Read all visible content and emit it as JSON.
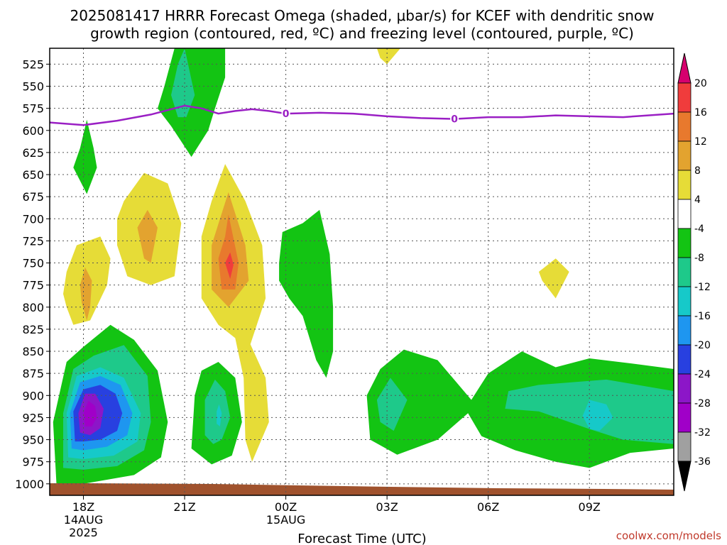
{
  "chart_data": {
    "type": "heatmap",
    "title_line1": "2025081417 HRRR Forecast Omega (shaded, μbar/s) for KCEF with dendritic snow",
    "title_line2": "growth region (contoured, red, ºC) and freezing level (contoured, purple, ºC)",
    "xlabel": "Forecast Time (UTC)",
    "credit": "coolwx.com/models",
    "x_ticks": [
      {
        "hour": 0,
        "label": "18Z",
        "sub1": "14AUG",
        "sub2": "2025"
      },
      {
        "hour": 3,
        "label": "21Z",
        "sub1": "",
        "sub2": ""
      },
      {
        "hour": 6,
        "label": "00Z",
        "sub1": "15AUG",
        "sub2": ""
      },
      {
        "hour": 9,
        "label": "03Z",
        "sub1": "",
        "sub2": ""
      },
      {
        "hour": 12,
        "label": "06Z",
        "sub1": "",
        "sub2": ""
      },
      {
        "hour": 15,
        "label": "09Z",
        "sub1": "",
        "sub2": ""
      }
    ],
    "xlim": [
      -1,
      17.5
    ],
    "ylim": [
      507,
      1013
    ],
    "y_ticks": [
      525,
      550,
      575,
      600,
      625,
      650,
      675,
      700,
      725,
      750,
      775,
      800,
      825,
      850,
      875,
      900,
      925,
      950,
      975,
      1000
    ],
    "colorbar": {
      "labels": [
        "20",
        "16",
        "12",
        "8",
        "4",
        "-4",
        "-8",
        "-12",
        "-16",
        "-20",
        "-24",
        "-28",
        "-32",
        "-36"
      ],
      "colors": [
        "#d6006e",
        "#f03c3c",
        "#e8792d",
        "#e3a32f",
        "#e6dc37",
        "#ffffff",
        "#13c413",
        "#1ec98a",
        "#16c9c9",
        "#1e96f0",
        "#2840e0",
        "#8c16c8",
        "#a000c8",
        "#a0a0a0",
        "#000000"
      ]
    },
    "freezing_level": {
      "label": "0",
      "label_hours": [
        6,
        11
      ],
      "points": [
        [
          -1,
          591
        ],
        [
          0,
          594
        ],
        [
          1,
          589
        ],
        [
          2,
          582
        ],
        [
          2.5,
          577
        ],
        [
          3,
          572
        ],
        [
          3.5,
          575
        ],
        [
          4,
          581
        ],
        [
          4.5,
          578
        ],
        [
          5,
          576
        ],
        [
          5.5,
          578
        ],
        [
          6,
          581
        ],
        [
          7,
          580
        ],
        [
          8,
          581
        ],
        [
          9,
          584
        ],
        [
          10,
          586
        ],
        [
          11,
          587
        ],
        [
          12,
          585
        ],
        [
          13,
          585
        ],
        [
          14,
          583
        ],
        [
          15,
          584
        ],
        [
          16,
          585
        ],
        [
          17.5,
          581
        ]
      ]
    },
    "omega_regions": [
      {
        "value": -6,
        "color": "#13c413",
        "points": [
          [
            -0.8,
            1000
          ],
          [
            -0.9,
            930
          ],
          [
            -0.5,
            862
          ],
          [
            0,
            845
          ],
          [
            0.8,
            820
          ],
          [
            1.5,
            837
          ],
          [
            2.2,
            872
          ],
          [
            2.5,
            930
          ],
          [
            2.3,
            970
          ],
          [
            1.5,
            990
          ],
          [
            0,
            1000
          ]
        ]
      },
      {
        "value": -10,
        "color": "#1ec98a",
        "points": [
          [
            -0.6,
            982
          ],
          [
            -0.6,
            920
          ],
          [
            -0.3,
            870
          ],
          [
            0.3,
            855
          ],
          [
            1.2,
            843
          ],
          [
            1.9,
            878
          ],
          [
            2.0,
            930
          ],
          [
            1.8,
            962
          ],
          [
            1,
            980
          ],
          [
            0,
            984
          ]
        ]
      },
      {
        "value": -14,
        "color": "#16c9c9",
        "points": [
          [
            -0.45,
            970
          ],
          [
            -0.5,
            920
          ],
          [
            -0.2,
            878
          ],
          [
            0.5,
            868
          ],
          [
            1.2,
            880
          ],
          [
            1.7,
            920
          ],
          [
            1.6,
            952
          ],
          [
            0.9,
            968
          ],
          [
            0,
            972
          ]
        ]
      },
      {
        "value": -18,
        "color": "#1e96f0",
        "points": [
          [
            -0.35,
            960
          ],
          [
            -0.4,
            920
          ],
          [
            -0.1,
            885
          ],
          [
            0.5,
            878
          ],
          [
            1.1,
            888
          ],
          [
            1.45,
            920
          ],
          [
            1.3,
            945
          ],
          [
            0.7,
            958
          ],
          [
            0,
            962
          ]
        ]
      },
      {
        "value": -22,
        "color": "#2840e0",
        "points": [
          [
            -0.25,
            952
          ],
          [
            -0.3,
            918
          ],
          [
            0,
            893
          ],
          [
            0.5,
            888
          ],
          [
            0.95,
            898
          ],
          [
            1.15,
            920
          ],
          [
            1.0,
            940
          ],
          [
            0.5,
            950
          ],
          [
            0,
            952
          ]
        ]
      },
      {
        "value": -26,
        "color": "#8c16c8",
        "points": [
          [
            -0.1,
            942
          ],
          [
            -0.15,
            920
          ],
          [
            0.05,
            898
          ],
          [
            0.35,
            898
          ],
          [
            0.6,
            915
          ],
          [
            0.5,
            937
          ],
          [
            0.2,
            945
          ]
        ]
      },
      {
        "value": -30,
        "color": "#a000c8",
        "points": [
          [
            0.05,
            935
          ],
          [
            0,
            920
          ],
          [
            0.15,
            906
          ],
          [
            0.35,
            912
          ],
          [
            0.4,
            925
          ],
          [
            0.25,
            935
          ]
        ]
      },
      {
        "value": -6,
        "color": "#13c413",
        "points": [
          [
            3.2,
            960
          ],
          [
            3.3,
            900
          ],
          [
            3.5,
            872
          ],
          [
            4.0,
            862
          ],
          [
            4.5,
            880
          ],
          [
            4.7,
            930
          ],
          [
            4.4,
            968
          ],
          [
            3.8,
            978
          ]
        ]
      },
      {
        "value": -10,
        "color": "#1ec98a",
        "points": [
          [
            3.6,
            945
          ],
          [
            3.6,
            905
          ],
          [
            3.9,
            882
          ],
          [
            4.2,
            895
          ],
          [
            4.35,
            925
          ],
          [
            4.1,
            950
          ],
          [
            3.85,
            955
          ]
        ]
      },
      {
        "value": -14,
        "color": "#16c9c9",
        "points": [
          [
            3.95,
            932
          ],
          [
            3.95,
            918
          ],
          [
            4.02,
            910
          ],
          [
            4.1,
            920
          ],
          [
            4.05,
            935
          ]
        ]
      },
      {
        "value": -6,
        "color": "#13c413",
        "points": [
          [
            9.3,
            967
          ],
          [
            8.5,
            950
          ],
          [
            8.4,
            900
          ],
          [
            8.8,
            870
          ],
          [
            9.5,
            848
          ],
          [
            10.5,
            860
          ],
          [
            11.5,
            905
          ],
          [
            12,
            875
          ],
          [
            13,
            850
          ],
          [
            14,
            868
          ],
          [
            15,
            858
          ],
          [
            16.5,
            865
          ],
          [
            17.5,
            870
          ],
          [
            17.5,
            960
          ],
          [
            16.2,
            965
          ],
          [
            15,
            982
          ],
          [
            14,
            975
          ],
          [
            12.8,
            962
          ],
          [
            11.8,
            946
          ],
          [
            11.4,
            920
          ],
          [
            10.5,
            950
          ],
          [
            9.8,
            960
          ]
        ]
      },
      {
        "value": -10,
        "color": "#1ec98a",
        "points": [
          [
            8.7,
            905
          ],
          [
            9.1,
            880
          ],
          [
            9.6,
            905
          ],
          [
            9.2,
            940
          ],
          [
            8.8,
            930
          ]
        ]
      },
      {
        "value": -10,
        "color": "#1ec98a",
        "points": [
          [
            12.5,
            915
          ],
          [
            12.6,
            895
          ],
          [
            13.5,
            888
          ],
          [
            14.5,
            885
          ],
          [
            15.5,
            882
          ],
          [
            17.5,
            895
          ],
          [
            17.5,
            955
          ],
          [
            16,
            950
          ],
          [
            15,
            938
          ],
          [
            13.5,
            918
          ]
        ]
      },
      {
        "value": -14,
        "color": "#16c9c9",
        "points": [
          [
            14.8,
            923
          ],
          [
            15,
            905
          ],
          [
            15.5,
            910
          ],
          [
            15.7,
            925
          ],
          [
            15.3,
            940
          ],
          [
            15,
            938
          ]
        ]
      },
      {
        "value": -6,
        "color": "#13c413",
        "points": [
          [
            5.8,
            750
          ],
          [
            5.9,
            715
          ],
          [
            6.5,
            705
          ],
          [
            7.0,
            690
          ],
          [
            7.3,
            740
          ],
          [
            7.4,
            800
          ],
          [
            7.4,
            850
          ],
          [
            7.2,
            880
          ],
          [
            6.9,
            860
          ],
          [
            6.5,
            810
          ],
          [
            6.1,
            790
          ],
          [
            5.8,
            770
          ]
        ]
      },
      {
        "value": -6,
        "color": "#13c413",
        "points": [
          [
            0.1,
            588
          ],
          [
            0.3,
            620
          ],
          [
            0.4,
            642
          ],
          [
            0.1,
            672
          ],
          [
            -0.3,
            642
          ],
          [
            -0.1,
            620
          ]
        ]
      },
      {
        "value": -6,
        "color": "#13c413",
        "points": [
          [
            2.2,
            575
          ],
          [
            2.4,
            550
          ],
          [
            2.7,
            507
          ],
          [
            4.2,
            507
          ],
          [
            4.2,
            540
          ],
          [
            3.9,
            575
          ],
          [
            3.7,
            600
          ],
          [
            3.2,
            630
          ],
          [
            2.6,
            595
          ]
        ]
      },
      {
        "value": -10,
        "color": "#1ec98a",
        "points": [
          [
            2.8,
            585
          ],
          [
            2.6,
            560
          ],
          [
            2.8,
            525
          ],
          [
            3.0,
            507
          ],
          [
            3.3,
            560
          ],
          [
            3.05,
            585
          ]
        ]
      },
      {
        "value": 6,
        "color": "#e6dc37",
        "points": [
          [
            -0.6,
            785
          ],
          [
            -0.5,
            760
          ],
          [
            -0.2,
            730
          ],
          [
            0.5,
            720
          ],
          [
            0.8,
            745
          ],
          [
            0.7,
            775
          ],
          [
            0.2,
            815
          ],
          [
            -0.3,
            820
          ],
          [
            -0.5,
            800
          ]
        ]
      },
      {
        "value": 10,
        "color": "#e3a32f",
        "points": [
          [
            -0.05,
            795
          ],
          [
            -0.1,
            775
          ],
          [
            0.05,
            755
          ],
          [
            0.25,
            770
          ],
          [
            0.2,
            800
          ],
          [
            0.1,
            815
          ]
        ]
      },
      {
        "value": 6,
        "color": "#e6dc37",
        "points": [
          [
            1.0,
            700
          ],
          [
            1.2,
            680
          ],
          [
            1.8,
            648
          ],
          [
            2.5,
            660
          ],
          [
            2.9,
            705
          ],
          [
            2.7,
            765
          ],
          [
            2.0,
            775
          ],
          [
            1.3,
            765
          ],
          [
            1.0,
            730
          ]
        ]
      },
      {
        "value": 10,
        "color": "#e3a32f",
        "points": [
          [
            1.6,
            710
          ],
          [
            1.9,
            690
          ],
          [
            2.2,
            710
          ],
          [
            2.0,
            750
          ],
          [
            1.8,
            745
          ]
        ]
      },
      {
        "value": 6,
        "color": "#e6dc37",
        "points": [
          [
            3.5,
            720
          ],
          [
            3.8,
            680
          ],
          [
            4.2,
            638
          ],
          [
            4.8,
            680
          ],
          [
            5.3,
            730
          ],
          [
            5.4,
            790
          ],
          [
            4.95,
            842
          ],
          [
            5.4,
            880
          ],
          [
            5.5,
            930
          ],
          [
            5.0,
            975
          ],
          [
            4.8,
            950
          ],
          [
            4.75,
            880
          ],
          [
            4.5,
            835
          ],
          [
            4.0,
            820
          ],
          [
            3.5,
            790
          ]
        ]
      },
      {
        "value": 10,
        "color": "#e3a32f",
        "points": [
          [
            3.8,
            730
          ],
          [
            4.05,
            700
          ],
          [
            4.3,
            670
          ],
          [
            4.8,
            730
          ],
          [
            4.9,
            770
          ],
          [
            4.3,
            800
          ],
          [
            3.8,
            780
          ]
        ]
      },
      {
        "value": 14,
        "color": "#e8792d",
        "points": [
          [
            4.0,
            745
          ],
          [
            4.2,
            720
          ],
          [
            4.3,
            695
          ],
          [
            4.6,
            750
          ],
          [
            4.5,
            780
          ],
          [
            4.1,
            780
          ]
        ]
      },
      {
        "value": 18,
        "color": "#f03c3c",
        "points": [
          [
            4.2,
            750
          ],
          [
            4.35,
            738
          ],
          [
            4.45,
            752
          ],
          [
            4.35,
            768
          ]
        ]
      },
      {
        "value": 6,
        "color": "#e6dc37",
        "points": [
          [
            13.5,
            760
          ],
          [
            14,
            745
          ],
          [
            14.4,
            760
          ],
          [
            14.0,
            790
          ],
          [
            13.6,
            770
          ]
        ]
      },
      {
        "value": 6,
        "color": "#e6dc37",
        "points": [
          [
            8.7,
            507
          ],
          [
            9.4,
            507
          ],
          [
            9.0,
            525
          ],
          [
            8.8,
            518
          ]
        ]
      }
    ]
  }
}
